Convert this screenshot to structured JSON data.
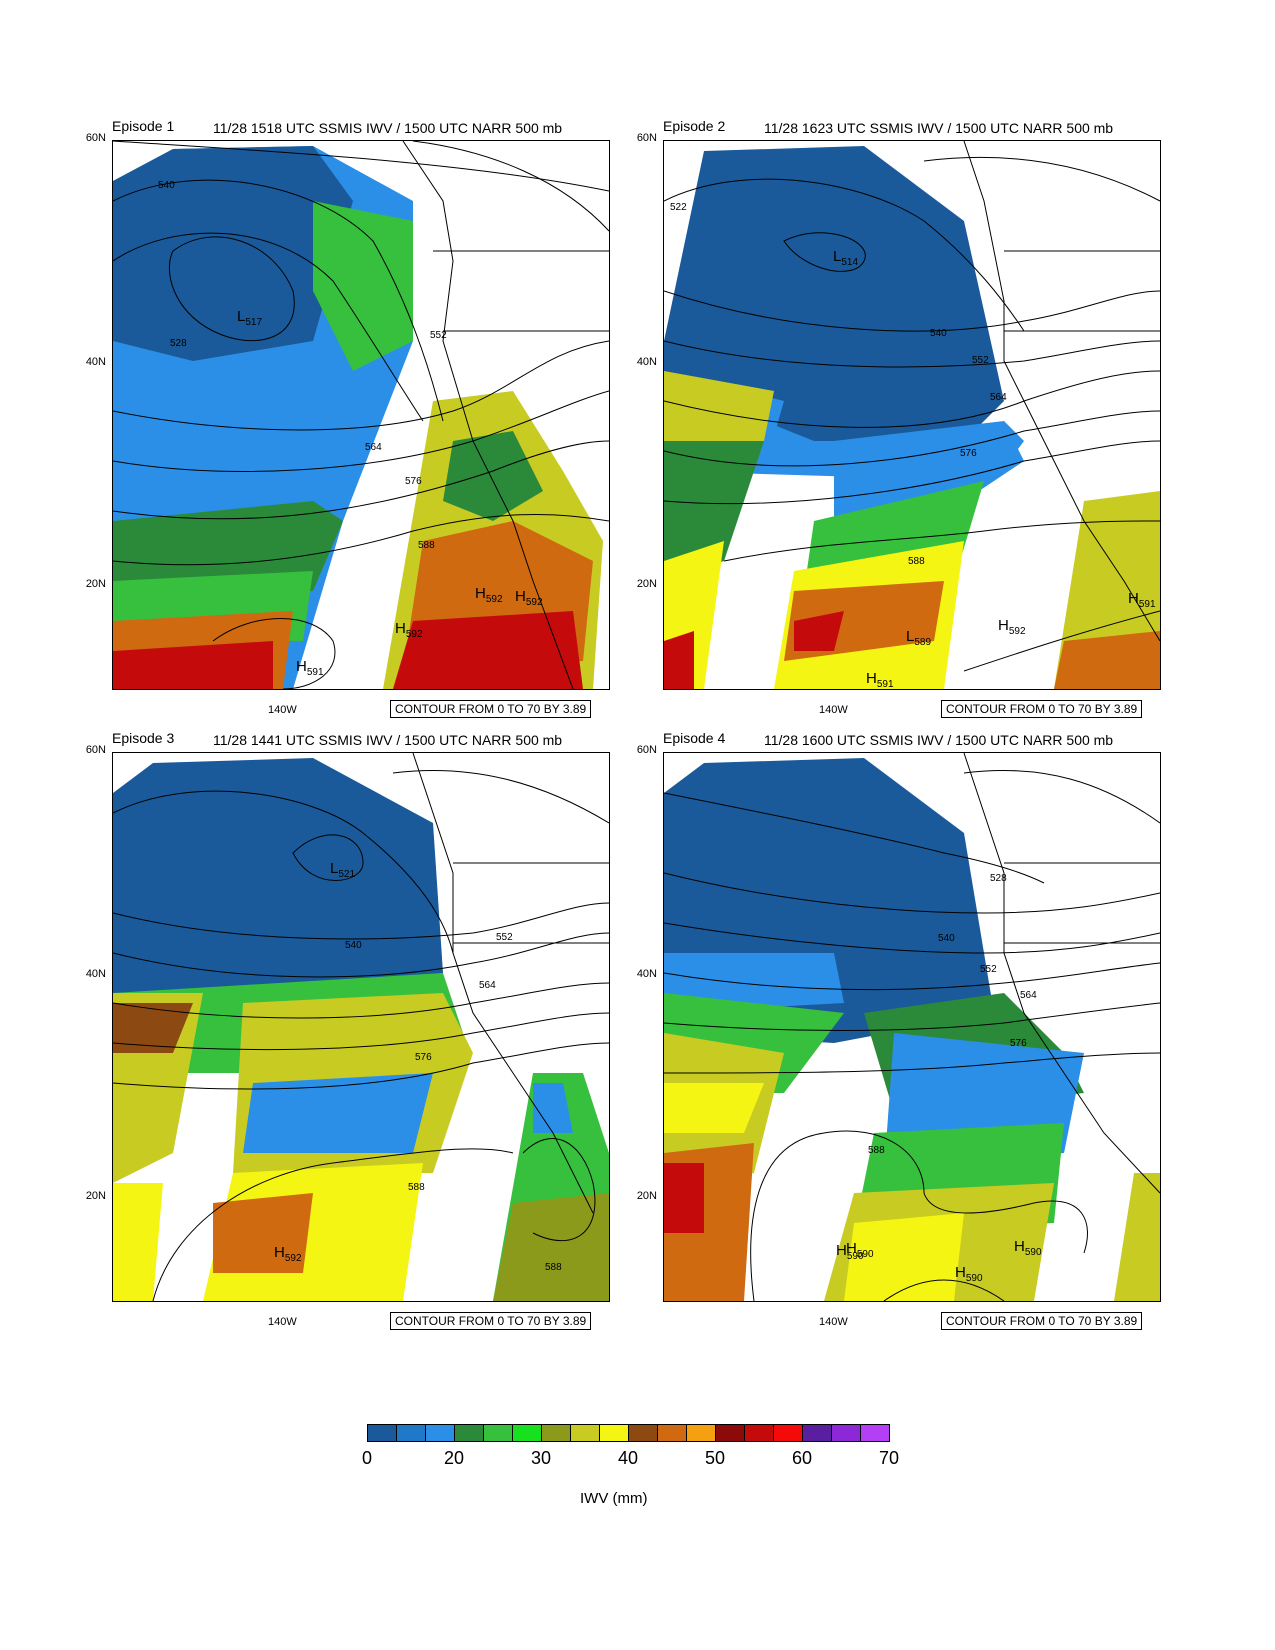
{
  "panels": [
    {
      "episode": "Episode 1",
      "title": "11/28 1518 UTC SSMIS IWV / 1500 UTC NARR 500 mb",
      "lat_labels": [
        "60N",
        "40N",
        "20N"
      ],
      "lon_label": "140W",
      "contour_note": "CONTOUR FROM 0 TO 70 BY 3.89",
      "contour_labels": [
        "540",
        "528",
        "552",
        "564",
        "576",
        "588"
      ],
      "markers": [
        {
          "letter": "L",
          "value": "517"
        },
        {
          "letter": "H",
          "value": "592"
        },
        {
          "letter": "H",
          "value": "592"
        },
        {
          "letter": "H",
          "value": "592"
        },
        {
          "letter": "H",
          "value": "591"
        }
      ]
    },
    {
      "episode": "Episode 2",
      "title": "11/28 1623 UTC SSMIS IWV / 1500 UTC NARR 500 mb",
      "lat_labels": [
        "60N",
        "40N",
        "20N"
      ],
      "lon_label": "140W",
      "contour_note": "CONTOUR FROM 0 TO 70 BY 3.89",
      "contour_labels": [
        "522",
        "540",
        "552",
        "564",
        "576",
        "588"
      ],
      "markers": [
        {
          "letter": "L",
          "value": "514"
        },
        {
          "letter": "L",
          "value": "589"
        },
        {
          "letter": "H",
          "value": "592"
        },
        {
          "letter": "H",
          "value": "591"
        },
        {
          "letter": "H",
          "value": "591"
        }
      ]
    },
    {
      "episode": "Episode 3",
      "title": "11/28 1441 UTC SSMIS IWV / 1500 UTC NARR 500 mb",
      "lat_labels": [
        "60N",
        "40N",
        "20N"
      ],
      "lon_label": "140W",
      "contour_note": "CONTOUR FROM 0 TO 70 BY 3.89",
      "contour_labels": [
        "540",
        "552",
        "564",
        "576",
        "588",
        "588"
      ],
      "markers": [
        {
          "letter": "L",
          "value": "521"
        },
        {
          "letter": "H",
          "value": "592"
        }
      ]
    },
    {
      "episode": "Episode 4",
      "title": "11/28 1600 UTC SSMIS IWV / 1500 UTC NARR 500 mb",
      "lat_labels": [
        "60N",
        "40N",
        "20N"
      ],
      "lon_label": "140W",
      "contour_note": "CONTOUR FROM 0 TO 70 BY 3.89",
      "contour_labels": [
        "528",
        "540",
        "552",
        "564",
        "576",
        "588"
      ],
      "markers": [
        {
          "letter": "H",
          "value": "590"
        },
        {
          "letter": "H",
          "value": "590"
        },
        {
          "letter": "H",
          "value": "590"
        },
        {
          "letter": "H",
          "value": "590"
        }
      ]
    }
  ],
  "colorbar": {
    "label": "IWV (mm)",
    "ticks": [
      "0",
      "20",
      "30",
      "40",
      "50",
      "60",
      "70"
    ],
    "colors": [
      "#1a5a9a",
      "#1f78c8",
      "#2b8fe8",
      "#2a8a3a",
      "#37c03e",
      "#17e01e",
      "#8c9a1c",
      "#c8cc22",
      "#f5f513",
      "#8c4a12",
      "#d06a10",
      "#f5a010",
      "#8c0a0a",
      "#c40a0a",
      "#f50a0a",
      "#5a1ea0",
      "#8c28d8",
      "#b440f5"
    ]
  }
}
